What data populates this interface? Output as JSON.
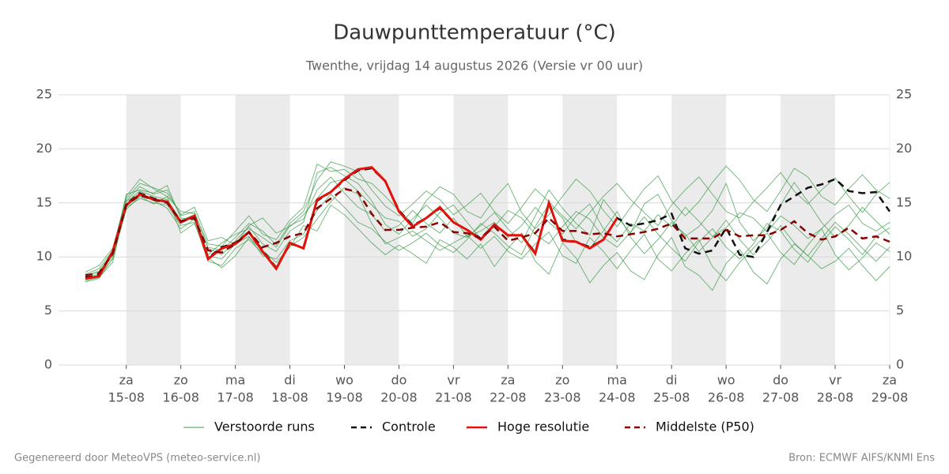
{
  "chart_data": {
    "type": "line",
    "title": "Dauwpunttemperatuur (°C)",
    "subtitle": "Twenthe, vrijdag 14 augustus 2026 (Versie vr 00 uur)",
    "footer_left": "Gegenereerd door MeteoVPS (meteo-service.nl)",
    "footer_right": "Bron: ECMWF AIFS/KNMI Ens",
    "categories": [
      null,
      null,
      null,
      [
        "za",
        "15-08"
      ],
      null,
      null,
      null,
      [
        "zo",
        "16-08"
      ],
      null,
      null,
      null,
      [
        "ma",
        "17-08"
      ],
      null,
      null,
      null,
      [
        "di",
        "18-08"
      ],
      null,
      null,
      null,
      [
        "wo",
        "19-08"
      ],
      null,
      null,
      null,
      [
        "do",
        "20-08"
      ],
      null,
      null,
      null,
      [
        "vr",
        "21-08"
      ],
      null,
      null,
      null,
      [
        "za",
        "22-08"
      ],
      null,
      null,
      null,
      [
        "zo",
        "23-08"
      ],
      null,
      null,
      null,
      [
        "ma",
        "24-08"
      ],
      null,
      null,
      null,
      [
        "di",
        "25-08"
      ],
      null,
      null,
      null,
      [
        "wo",
        "26-08"
      ],
      null,
      null,
      null,
      [
        "do",
        "27-08"
      ],
      null,
      null,
      null,
      [
        "vr",
        "28-08"
      ],
      null,
      null,
      null,
      [
        "za",
        "29-08"
      ]
    ],
    "ylim": [
      0,
      25
    ],
    "yticks": [
      0,
      5,
      10,
      15,
      20,
      25
    ],
    "grid": true,
    "ensemble": {
      "name": "Verstoorde runs",
      "color": "#3a9a48",
      "members": [
        [
          8.2,
          8.6,
          10.2,
          15.2,
          16.5,
          15.8,
          16.2,
          13.8,
          14.2,
          10.8,
          10.2,
          11.5,
          12.8,
          11.2,
          10.5,
          12.4,
          13.2,
          17.8,
          18.3,
          17.5,
          16.8,
          15.2,
          13.0,
          12.1,
          13.5,
          14.8,
          13.6,
          12.2,
          11.8,
          12.9,
          14.1,
          12.6,
          11.3,
          13.8,
          16.2,
          14.5,
          13.1,
          12.0,
          15.3,
          13.7,
          12.2,
          14.9,
          15.8,
          13.4,
          11.9,
          12.8,
          14.3,
          16.8,
          13.2,
          11.5,
          12.7,
          14.8,
          16.9,
          15.1,
          13.2,
          11.8,
          12.9,
          14.6,
          13.3,
          12.1
        ],
        [
          7.9,
          8.3,
          9.8,
          14.6,
          15.4,
          15.0,
          14.8,
          12.9,
          13.2,
          9.6,
          9.2,
          10.8,
          11.6,
          10.3,
          9.1,
          11.0,
          11.8,
          13.5,
          15.1,
          16.4,
          15.8,
          13.1,
          11.2,
          11.8,
          12.4,
          11.5,
          10.6,
          11.3,
          12.0,
          10.8,
          11.9,
          10.5,
          9.8,
          11.2,
          12.3,
          10.1,
          9.4,
          11.8,
          10.5,
          8.9,
          10.6,
          12.1,
          9.8,
          8.7,
          10.3,
          11.6,
          9.1,
          7.8,
          9.5,
          10.8,
          12.2,
          10.4,
          9.3,
          11.1,
          12.6,
          10.2,
          8.8,
          9.9,
          11.3,
          10.5
        ],
        [
          8.4,
          8.9,
          10.6,
          15.6,
          17.2,
          16.3,
          15.6,
          14.2,
          14.0,
          11.2,
          11.0,
          12.4,
          13.8,
          12.1,
          11.6,
          13.4,
          14.6,
          18.6,
          17.9,
          18.1,
          17.2,
          16.8,
          15.6,
          14.3,
          13.1,
          15.2,
          16.5,
          15.8,
          14.2,
          13.6,
          15.4,
          16.8,
          14.1,
          12.6,
          13.9,
          15.6,
          17.2,
          16.1,
          14.3,
          12.8,
          14.6,
          16.3,
          17.5,
          15.2,
          13.8,
          15.1,
          16.9,
          18.4,
          17.1,
          15.3,
          14.2,
          16.1,
          18.2,
          17.4,
          15.6,
          14.8,
          16.3,
          17.6,
          16.2,
          15.4
        ],
        [
          7.8,
          8.1,
          9.5,
          14.9,
          15.9,
          15.2,
          14.5,
          12.6,
          13.5,
          9.9,
          9.0,
          10.1,
          11.8,
          10.6,
          9.5,
          10.9,
          12.9,
          12.4,
          14.8,
          13.9,
          12.6,
          11.3,
          10.2,
          11.1,
          10.3,
          9.4,
          11.6,
          10.9,
          9.8,
          11.2,
          9.1,
          10.8,
          12.2,
          9.6,
          8.4,
          11.3,
          9.9,
          7.6,
          9.2,
          10.4,
          8.7,
          7.9,
          10.2,
          11.8,
          9.1,
          8.3,
          6.9,
          9.4,
          10.7,
          8.6,
          7.5,
          9.8,
          11.2,
          10.1,
          8.9,
          9.6,
          10.8,
          9.2,
          7.8,
          9.1
        ],
        [
          8.1,
          8.4,
          10.1,
          15.1,
          16.1,
          15.6,
          15.3,
          13.4,
          13.9,
          10.2,
          11.3,
          12.1,
          12.6,
          11.8,
          10.9,
          12.9,
          13.5,
          16.2,
          17.4,
          15.9,
          14.6,
          13.9,
          12.4,
          12.9,
          14.3,
          13.1,
          12.2,
          13.6,
          11.9,
          12.4,
          13.2,
          11.8,
          12.9,
          14.6,
          13.2,
          12.1,
          13.8,
          14.9,
          12.6,
          11.4,
          13.1,
          12.4,
          13.9,
          12.8,
          14.6,
          13.3,
          11.9,
          12.7,
          14.1,
          13.6,
          12.3,
          13.8,
          12.9,
          11.7,
          12.6,
          13.9,
          14.8,
          13.1,
          12.4,
          13.2
        ],
        [
          8.6,
          9.2,
          10.8,
          15.4,
          16.8,
          16.4,
          15.9,
          13.9,
          14.6,
          11.5,
          11.8,
          11.1,
          12.9,
          13.6,
          12.2,
          12.8,
          13.9,
          15.4,
          16.9,
          17.2,
          16.1,
          14.8,
          13.6,
          13.3,
          11.9,
          12.6,
          14.1,
          14.8,
          13.2,
          11.7,
          12.8,
          14.3,
          13.6,
          12.1,
          11.2,
          12.8,
          14.2,
          13.5,
          11.8,
          10.9,
          12.3,
          13.7,
          12.1,
          10.8,
          9.6,
          11.4,
          12.6,
          10.9,
          9.8,
          11.2,
          13.1,
          12.4,
          10.7,
          9.5,
          11.3,
          12.8,
          11.6,
          10.2,
          11.9,
          12.7
        ],
        [
          7.7,
          8.0,
          9.9,
          14.4,
          15.6,
          14.9,
          15.6,
          12.2,
          13.1,
          10.1,
          9.8,
          11.2,
          11.9,
          10.1,
          9.8,
          11.5,
          12.1,
          14.3,
          15.8,
          14.6,
          13.2,
          12.6,
          11.4,
          10.6,
          11.3,
          12.2,
          11.1,
          10.4,
          11.6,
          13.1,
          12.2,
          11.0,
          10.2,
          12.8,
          14.9,
          13.6,
          11.3,
          10.8,
          12.4,
          14.2,
          11.8,
          10.3,
          11.6,
          13.2,
          12.1,
          10.5,
          11.8,
          13.4,
          11.6,
          10.2,
          11.4,
          12.9,
          11.3,
          10.1,
          11.7,
          13.2,
          12.1,
          10.8,
          9.6,
          10.9
        ],
        [
          8.3,
          8.7,
          10.4,
          15.8,
          16.2,
          15.9,
          16.6,
          13.6,
          13.4,
          10.9,
          10.6,
          11.8,
          13.1,
          12.4,
          11.1,
          13.1,
          14.2,
          17.1,
          18.8,
          18.4,
          17.9,
          16.2,
          14.7,
          13.8,
          14.9,
          16.1,
          15.3,
          13.9,
          14.8,
          15.9,
          14.2,
          13.1,
          14.6,
          16.3,
          15.1,
          13.8,
          12.6,
          14.1,
          15.6,
          16.8,
          15.3,
          14.1,
          12.9,
          14.8,
          16.2,
          17.4,
          15.8,
          14.2,
          13.6,
          15.1,
          16.4,
          17.8,
          16.1,
          14.9,
          16.2,
          17.3,
          15.6,
          14.1,
          15.8,
          16.9
        ]
      ]
    },
    "series": [
      {
        "name": "Controle",
        "color": "#111111",
        "dash": true,
        "values": [
          8.1,
          8.3,
          10.4,
          14.9,
          15.9,
          15.4,
          15.1,
          13.2,
          13.8,
          9.9,
          10.9,
          11.3,
          12.3,
          10.6,
          9.0,
          11.2,
          10.9,
          15.2,
          16.0,
          17.1,
          18.0,
          18.2,
          17.0,
          14.3,
          12.9,
          13.6,
          14.5,
          13.2,
          12.5,
          11.7,
          13.0,
          12.0,
          12.0,
          10.4,
          14.9,
          11.6,
          11.4,
          10.9,
          11.6,
          13.6,
          12.9,
          13.1,
          13.4,
          14.0,
          10.8,
          10.3,
          10.6,
          12.7,
          10.2,
          10.0,
          12.3,
          14.8,
          15.6,
          16.4,
          16.7,
          17.2,
          16.1,
          15.9,
          16.0,
          14.2
        ]
      },
      {
        "name": "Hoge resolutie",
        "color": "#e3120b",
        "dash": false,
        "values": [
          8.0,
          8.2,
          10.5,
          14.8,
          15.8,
          15.3,
          15.1,
          13.2,
          13.8,
          9.8,
          10.8,
          11.2,
          12.3,
          10.5,
          8.9,
          11.3,
          10.8,
          15.3,
          16.0,
          17.2,
          18.1,
          18.3,
          17.0,
          14.2,
          12.8,
          13.6,
          14.6,
          13.2,
          12.5,
          11.6,
          13.0,
          12.0,
          12.0,
          10.3,
          15.0,
          11.5,
          11.4,
          10.8,
          11.6,
          13.6,
          null,
          null,
          null,
          null,
          null,
          null,
          null,
          null,
          null,
          null,
          null,
          null,
          null,
          null,
          null,
          null,
          null,
          null,
          null,
          null
        ]
      },
      {
        "name": "Middelste (P50)",
        "color": "#8b0000",
        "dash": true,
        "values": [
          8.3,
          8.5,
          10.3,
          14.8,
          15.7,
          15.3,
          15.0,
          13.3,
          13.6,
          10.6,
          10.4,
          11.2,
          12.3,
          10.9,
          11.3,
          11.9,
          12.2,
          14.5,
          15.4,
          16.3,
          16.0,
          14.0,
          12.5,
          12.5,
          12.7,
          12.8,
          13.2,
          12.3,
          12.2,
          11.7,
          12.8,
          11.5,
          11.8,
          12.2,
          13.6,
          12.4,
          12.4,
          12.1,
          12.2,
          11.9,
          12.1,
          12.3,
          12.6,
          13.1,
          11.7,
          11.7,
          11.7,
          12.5,
          11.9,
          12.0,
          12.0,
          12.5,
          13.3,
          12.2,
          11.6,
          11.9,
          12.7,
          11.7,
          11.9,
          11.4
        ]
      }
    ]
  }
}
